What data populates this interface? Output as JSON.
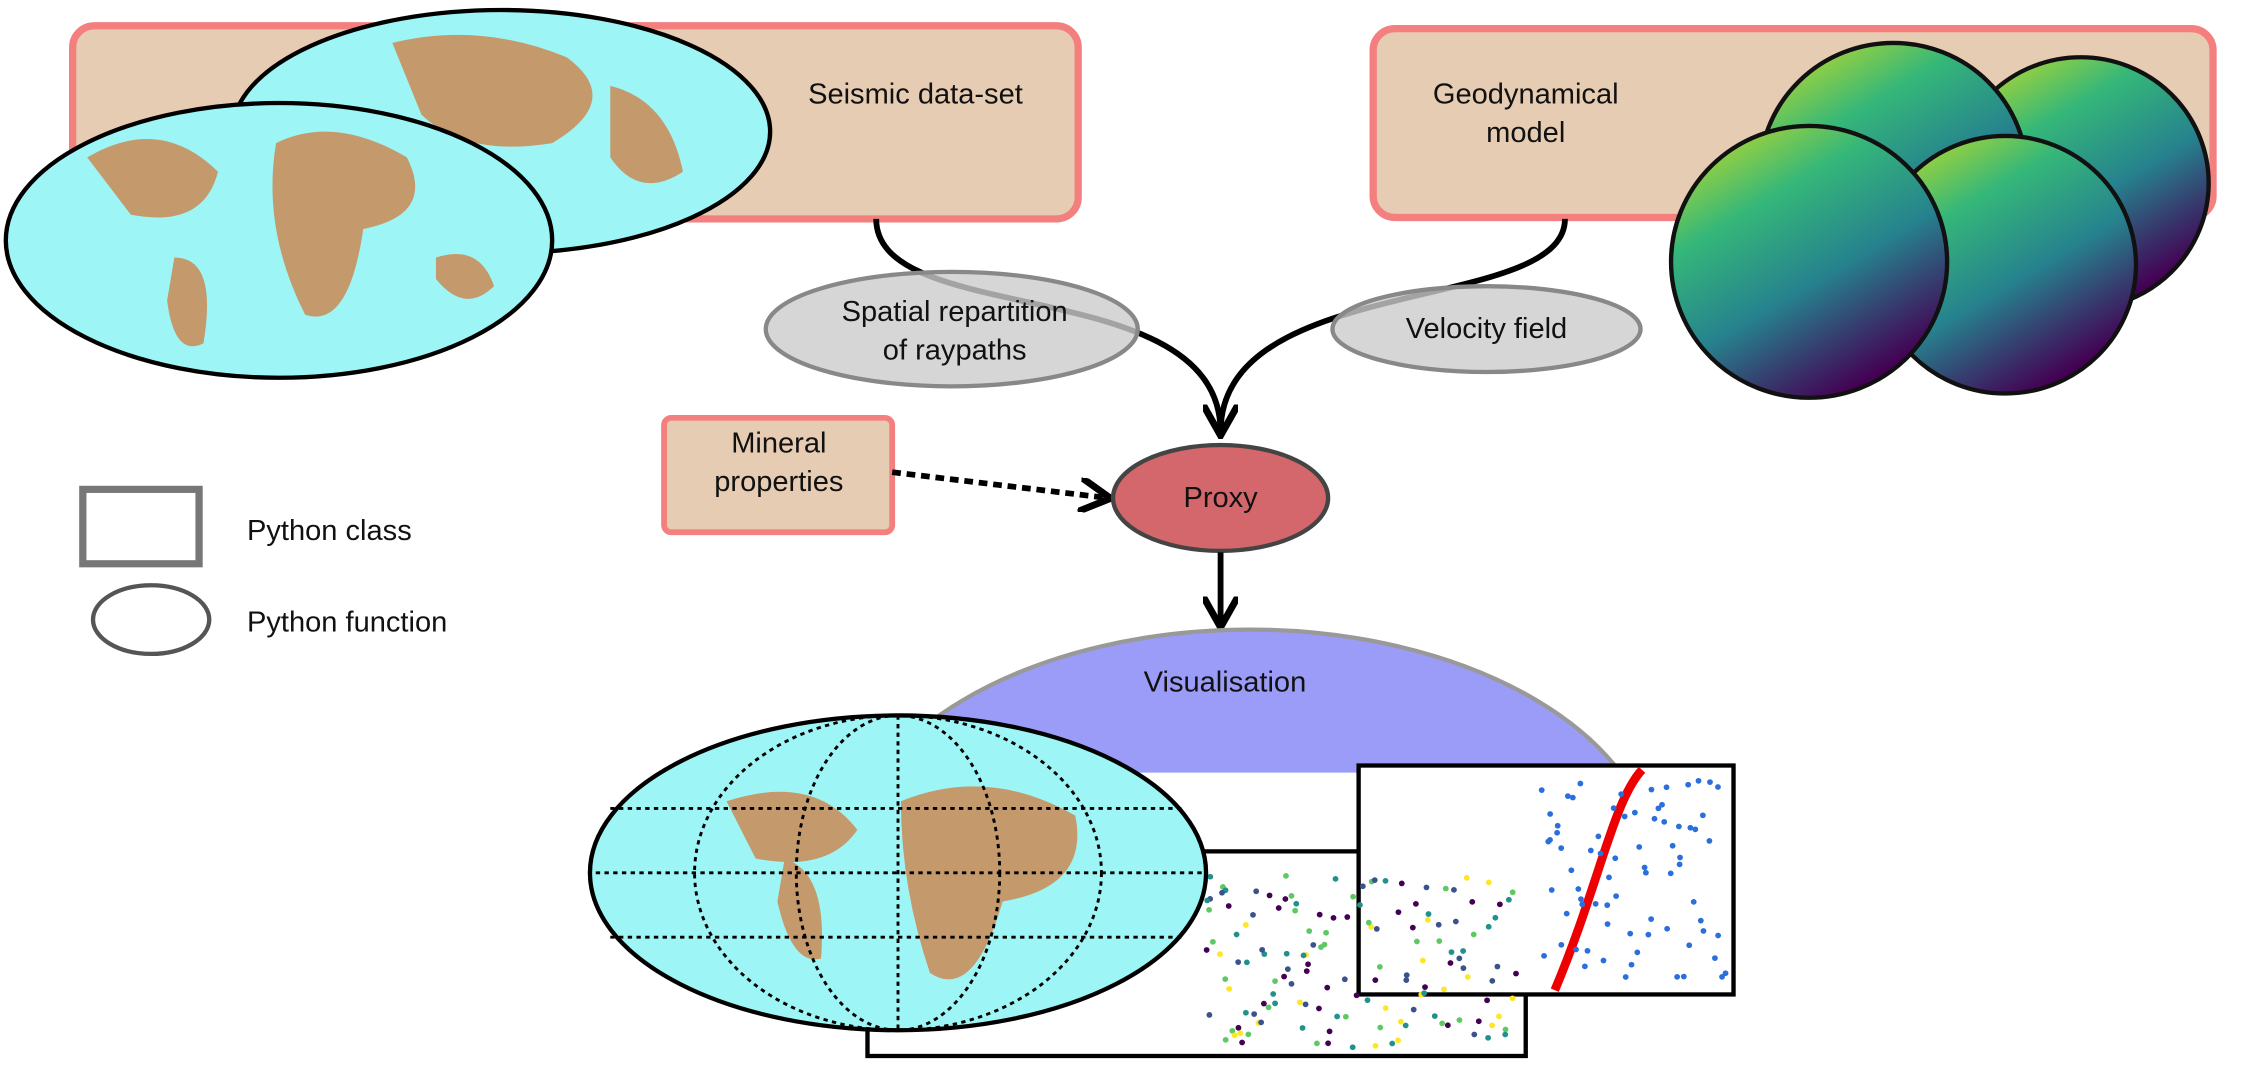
{
  "nodes": [
    {
      "label": [
        "Seismic data-set"
      ]
    },
    {
      "label": [
        "Geodynamical",
        "model"
      ]
    },
    {
      "label": [
        "Spatial repartition",
        "of raypaths"
      ]
    },
    {
      "label": [
        "Velocity field"
      ]
    },
    {
      "label": [
        "Mineral",
        "properties"
      ]
    },
    {
      "label": [
        "Proxy"
      ]
    },
    {
      "label": [
        "Visualisation"
      ]
    }
  ],
  "legend": [
    {
      "label": "Python class"
    },
    {
      "label": "Python function"
    }
  ]
}
